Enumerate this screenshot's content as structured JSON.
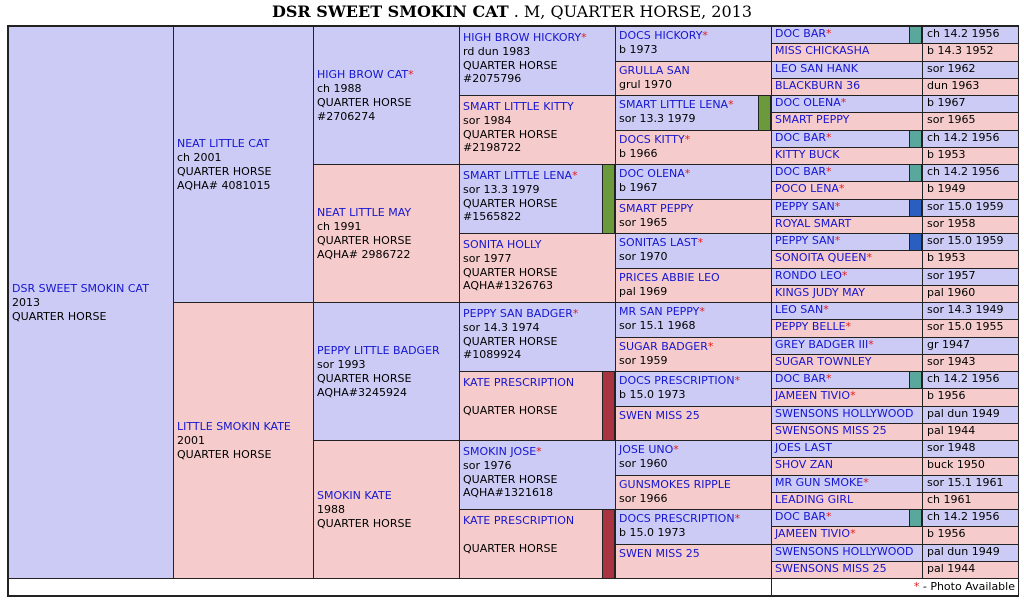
{
  "title": {
    "name": "DSR SWEET SMOKIN CAT",
    "rest": " . M, QUARTER HORSE, 2013"
  },
  "colors": {
    "male": "#cbcbf5",
    "female": "#f5cbcb",
    "border": "#222222",
    "name_link": "#1515d0",
    "star": "#e01b1b"
  },
  "legend": {
    "star": "*",
    "text": "- Photo Available"
  },
  "g0": {
    "name": "DSR SWEET SMOKIN CAT",
    "lines": [
      "2013",
      "QUARTER HORSE"
    ]
  },
  "g1": [
    {
      "name": "NEAT LITTLE CAT",
      "lines": [
        "ch 2001",
        "QUARTER HORSE",
        "AQHA# 4081015"
      ]
    },
    {
      "name": "LITTLE SMOKIN KATE",
      "lines": [
        "2001",
        "QUARTER HORSE"
      ]
    }
  ],
  "g2": [
    {
      "name": "HIGH BROW CAT",
      "star": true,
      "lines": [
        "ch 1988",
        "QUARTER HORSE",
        "#2706274"
      ]
    },
    {
      "name": "NEAT LITTLE MAY",
      "lines": [
        "ch 1991",
        "QUARTER HORSE",
        "AQHA# 2986722"
      ]
    },
    {
      "name": "PEPPY LITTLE BADGER",
      "lines": [
        "sor 1993",
        "QUARTER HORSE",
        "AQHA#3245924"
      ]
    },
    {
      "name": "SMOKIN KATE",
      "lines": [
        "1988",
        "QUARTER HORSE"
      ]
    }
  ],
  "g3": [
    {
      "name": "HIGH BROW HICKORY",
      "star": true,
      "lines": [
        "rd dun 1983",
        "QUARTER HORSE",
        "#2075796"
      ]
    },
    {
      "name": "SMART LITTLE KITTY",
      "lines": [
        "sor 1984",
        "QUARTER HORSE",
        "#2198722"
      ]
    },
    {
      "name": "SMART LITTLE LENA",
      "star": true,
      "lines": [
        "sor 13.3 1979",
        "QUARTER HORSE",
        "#1565822"
      ]
    },
    {
      "name": "SONITA HOLLY",
      "lines": [
        "sor 1977",
        "QUARTER HORSE",
        "AQHA#1326763"
      ]
    },
    {
      "name": "PEPPY SAN BADGER",
      "star": true,
      "lines": [
        "sor 14.3 1974",
        "QUARTER HORSE",
        "#1089924"
      ]
    },
    {
      "name": "KATE PRESCRIPTION",
      "lines": [
        "QUARTER HORSE"
      ]
    },
    {
      "name": "SMOKIN JOSE",
      "star": true,
      "lines": [
        "sor 1976",
        "QUARTER HORSE",
        "AQHA#1321618"
      ]
    },
    {
      "name": "KATE PRESCRIPTION",
      "lines": [
        "QUARTER HORSE"
      ]
    }
  ],
  "g4": [
    {
      "name": "DOCS HICKORY",
      "star": true,
      "lines": [
        "b 1973"
      ]
    },
    {
      "name": "GRULLA SAN",
      "lines": [
        "grul 1970"
      ]
    },
    {
      "name": "SMART LITTLE LENA",
      "star": true,
      "lines": [
        "sor 13.3 1979"
      ]
    },
    {
      "name": "DOCS KITTY",
      "star": true,
      "lines": [
        "b 1966"
      ]
    },
    {
      "name": "DOC OLENA",
      "star": true,
      "lines": [
        "b 1967"
      ]
    },
    {
      "name": "SMART PEPPY",
      "lines": [
        "sor 1965"
      ]
    },
    {
      "name": "SONITAS LAST",
      "star": true,
      "lines": [
        "sor 1970"
      ]
    },
    {
      "name": "PRICES ABBIE LEO",
      "lines": [
        "pal 1969"
      ]
    },
    {
      "name": "MR SAN PEPPY",
      "star": true,
      "lines": [
        "sor 15.1 1968"
      ]
    },
    {
      "name": "SUGAR BADGER",
      "star": true,
      "lines": [
        "sor 1959"
      ]
    },
    {
      "name": "DOCS PRESCRIPTION",
      "star": true,
      "lines": [
        "b 15.0 1973"
      ]
    },
    {
      "name": "SWEN MISS 25",
      "lines": []
    },
    {
      "name": "JOSE UNO",
      "star": true,
      "lines": [
        "sor 1960"
      ]
    },
    {
      "name": "GUNSMOKES RIPPLE",
      "lines": [
        "sor 1966"
      ]
    },
    {
      "name": "DOCS PRESCRIPTION",
      "star": true,
      "lines": [
        "b 15.0 1973"
      ]
    },
    {
      "name": "SWEN MISS 25",
      "lines": []
    }
  ],
  "g5": [
    {
      "name": "DOC BAR",
      "star": true,
      "date": "ch 14.2 1956"
    },
    {
      "name": "MISS CHICKASHA",
      "date": "b 14.3 1952"
    },
    {
      "name": "LEO SAN HANK",
      "date": "sor 1962"
    },
    {
      "name": "BLACKBURN 36",
      "date": "dun 1963"
    },
    {
      "name": "DOC OLENA",
      "star": true,
      "date": "b 1967"
    },
    {
      "name": "SMART PEPPY",
      "date": "sor 1965"
    },
    {
      "name": "DOC BAR",
      "star": true,
      "date": "ch 14.2 1956"
    },
    {
      "name": "KITTY BUCK",
      "date": "b 1953"
    },
    {
      "name": "DOC BAR",
      "star": true,
      "date": "ch 14.2 1956"
    },
    {
      "name": "POCO LENA",
      "star": true,
      "date": "b 1949"
    },
    {
      "name": "PEPPY SAN",
      "star": true,
      "date": "sor 15.0 1959"
    },
    {
      "name": "ROYAL SMART",
      "date": "sor 1958"
    },
    {
      "name": "PEPPY SAN",
      "star": true,
      "date": "sor 15.0 1959"
    },
    {
      "name": "SONOITA QUEEN",
      "star": true,
      "date": "b 1953"
    },
    {
      "name": "RONDO LEO",
      "star": true,
      "date": "sor 1957"
    },
    {
      "name": "KINGS JUDY MAY",
      "date": "pal 1960"
    },
    {
      "name": "LEO SAN",
      "star": true,
      "date": "sor 14.3 1949"
    },
    {
      "name": "PEPPY BELLE",
      "star": true,
      "date": "sor 15.0 1955"
    },
    {
      "name": "GREY BADGER III",
      "star": true,
      "date": "gr 1947"
    },
    {
      "name": "SUGAR TOWNLEY",
      "date": "sor 1943"
    },
    {
      "name": "DOC BAR",
      "star": true,
      "date": "ch 14.2 1956"
    },
    {
      "name": "JAMEEN TIVIO",
      "star": true,
      "date": "b 1956"
    },
    {
      "name": "SWENSONS HOLLYWOOD",
      "date": "pal dun 1949"
    },
    {
      "name": "SWENSONS MISS 25",
      "date": "pal 1944"
    },
    {
      "name": "JOES LAST",
      "date": "sor 1948"
    },
    {
      "name": "SHOV ZAN",
      "date": "buck 1950"
    },
    {
      "name": "MR GUN SMOKE",
      "star": true,
      "date": "sor 15.1 1961"
    },
    {
      "name": "LEADING GIRL",
      "date": "ch 1961"
    },
    {
      "name": "DOC BAR",
      "star": true,
      "date": "ch 14.2 1956"
    },
    {
      "name": "JAMEEN TIVIO",
      "star": true,
      "date": "b 1956"
    },
    {
      "name": "SWENSONS HOLLYWOOD",
      "date": "pal dun 1949"
    },
    {
      "name": "SWENSONS MISS 25",
      "date": "pal 1944"
    }
  ],
  "inbreeding_bars": [
    {
      "color": "#5aa79c",
      "label": "DOC BAR"
    },
    {
      "color": "#6a9a3c",
      "label": "SMART LITTLE LENA"
    },
    {
      "color": "#2a5fc2",
      "label": "PEPPY SAN"
    },
    {
      "color": "#a83442",
      "label": "KATE PRESCRIPTION"
    }
  ]
}
